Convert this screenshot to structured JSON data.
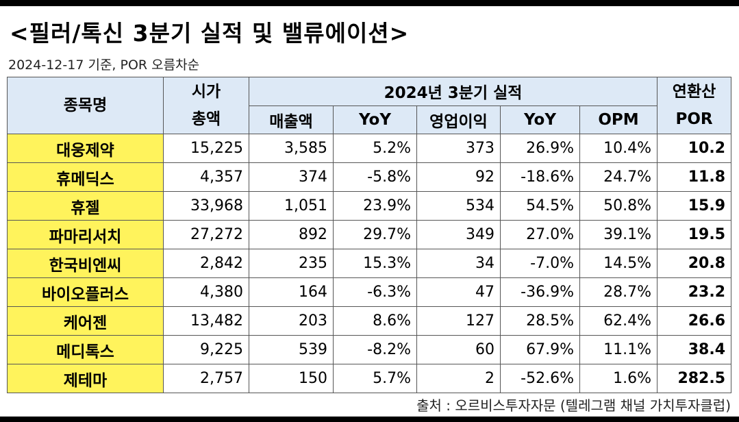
{
  "title": "<필러/톡신 3분기 실적 및 밸류에이션>",
  "subtitle": "2024-12-17 기준, POR 오름차순",
  "source": "출처 : 오르비스투자자문 (텔레그램 채널 가치투자클럽)",
  "headers": {
    "name": "종목명",
    "mcap_line1": "시가",
    "mcap_line2": "총액",
    "group": "2024년 3분기 실적",
    "revenue": "매출액",
    "rev_yoy": "YoY",
    "op_income": "영업이익",
    "op_yoy": "YoY",
    "opm": "OPM",
    "por_line1": "연환산",
    "por_line2": "POR"
  },
  "rows": [
    {
      "name": "대웅제약",
      "mcap": "15,225",
      "revenue": "3,585",
      "rev_yoy": "5.2%",
      "op": "373",
      "op_yoy": "26.9%",
      "opm": "10.4%",
      "por": "10.2"
    },
    {
      "name": "휴메딕스",
      "mcap": "4,357",
      "revenue": "374",
      "rev_yoy": "-5.8%",
      "op": "92",
      "op_yoy": "-18.6%",
      "opm": "24.7%",
      "por": "11.8"
    },
    {
      "name": "휴젤",
      "mcap": "33,968",
      "revenue": "1,051",
      "rev_yoy": "23.9%",
      "op": "534",
      "op_yoy": "54.5%",
      "opm": "50.8%",
      "por": "15.9"
    },
    {
      "name": "파마리서치",
      "mcap": "27,272",
      "revenue": "892",
      "rev_yoy": "29.7%",
      "op": "349",
      "op_yoy": "27.0%",
      "opm": "39.1%",
      "por": "19.5"
    },
    {
      "name": "한국비엔씨",
      "mcap": "2,842",
      "revenue": "235",
      "rev_yoy": "15.3%",
      "op": "34",
      "op_yoy": "-7.0%",
      "opm": "14.5%",
      "por": "20.8"
    },
    {
      "name": "바이오플러스",
      "mcap": "4,380",
      "revenue": "164",
      "rev_yoy": "-6.3%",
      "op": "47",
      "op_yoy": "-36.9%",
      "opm": "28.7%",
      "por": "23.2"
    },
    {
      "name": "케어젠",
      "mcap": "13,482",
      "revenue": "203",
      "rev_yoy": "8.6%",
      "op": "127",
      "op_yoy": "28.5%",
      "opm": "62.4%",
      "por": "26.6"
    },
    {
      "name": "메디톡스",
      "mcap": "9,225",
      "revenue": "539",
      "rev_yoy": "-8.2%",
      "op": "60",
      "op_yoy": "67.9%",
      "opm": "11.1%",
      "por": "38.4"
    },
    {
      "name": "제테마",
      "mcap": "2,757",
      "revenue": "150",
      "rev_yoy": "5.7%",
      "op": "2",
      "op_yoy": "-52.6%",
      "opm": "1.6%",
      "por": "282.5"
    }
  ]
}
